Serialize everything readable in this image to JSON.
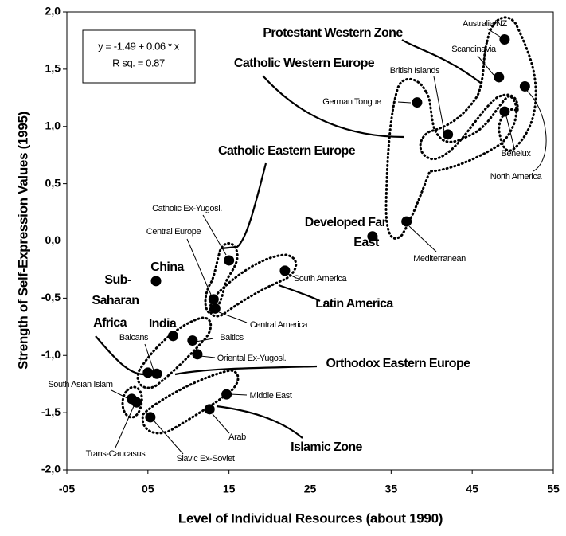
{
  "chart_data": {
    "type": "scatter",
    "x_label": "Level of Individual Resources (about 1990)",
    "y_label": "Strength of Self-Expression Values (1995)",
    "equation": [
      "y = -1.49 + 0.06 * x",
      "R sq. = 0.87"
    ],
    "xlim": [
      -5,
      55
    ],
    "xticks": [
      {
        "value": -5,
        "label": "-05"
      },
      {
        "value": 5,
        "label": "05"
      },
      15,
      25,
      35,
      45,
      55
    ],
    "ylim": [
      -2,
      2
    ],
    "yticks": [
      {
        "value": -2,
        "label": "-2,0"
      },
      {
        "value": -1.5,
        "label": "-1,5"
      },
      {
        "value": -1,
        "label": "-1,0"
      },
      {
        "value": -0.5,
        "label": "-0,5"
      },
      {
        "value": 0,
        "label": "0,0"
      },
      {
        "value": 0.5,
        "label": "0,5"
      },
      {
        "value": 1,
        "label": "1,0"
      },
      {
        "value": 1.5,
        "label": "1,5"
      },
      {
        "value": 2,
        "label": "2,0"
      }
    ],
    "color": "#000000",
    "x": [
      49.0,
      48.3,
      51.5,
      49.0,
      42.0,
      38.2,
      36.9,
      32.7,
      15.0,
      21.9,
      6.0,
      13.1,
      13.3,
      8.1,
      10.5,
      11.1,
      5.0,
      6.1,
      3.0,
      3.6,
      5.3,
      14.7,
      12.6
    ],
    "values": [
      1.76,
      1.43,
      1.35,
      1.13,
      0.93,
      1.21,
      0.17,
      0.04,
      -0.17,
      -0.26,
      -0.35,
      -0.51,
      -0.59,
      -0.83,
      -0.87,
      -0.99,
      -1.15,
      -1.16,
      -1.38,
      -1.41,
      -1.54,
      -1.34,
      -1.47
    ],
    "point_labels": [
      "Australia/NZ",
      "Scandinavia",
      "North America",
      "Benelux",
      "British Islands",
      "German Tongue",
      "Mediterranean",
      null,
      "Catholic Ex-Yugosl.",
      "South America",
      null,
      "Central Europe",
      "Central America",
      null,
      "Baltics",
      "Oriental Ex-Yugosl.",
      null,
      "Balcans",
      "South Asian Islam",
      "Trans-Caucasus",
      "Slavic Ex-Soviet",
      "Middle East",
      "Arab"
    ],
    "annotations": [
      "Protestant Western Zone",
      "Catholic Western Europe",
      "Catholic Eastern Europe",
      "Developed Far",
      "East",
      "China",
      "Sub-",
      "Saharan",
      "Africa",
      "India",
      "Latin America",
      "Orthodox Eastern Europe",
      "Islamic Zone"
    ]
  }
}
